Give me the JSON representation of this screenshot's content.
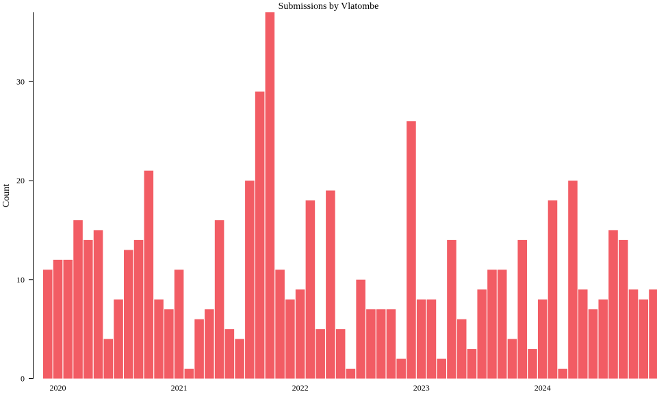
{
  "chart_data": {
    "type": "bar",
    "title": "Submissions by Vlatombe",
    "xlabel": "",
    "ylabel": "Count",
    "ylim": [
      0,
      37
    ],
    "yticks": [
      0,
      10,
      20,
      30
    ],
    "xticks": [
      "2020",
      "2021",
      "2022",
      "2023",
      "2024"
    ],
    "bar_color": "#f25c64",
    "grid": false,
    "categories": [
      "2019-12",
      "2020-01",
      "2020-02",
      "2020-03",
      "2020-04",
      "2020-05",
      "2020-06",
      "2020-07",
      "2020-08",
      "2020-09",
      "2020-10",
      "2020-11",
      "2020-12",
      "2021-01",
      "2021-02",
      "2021-03",
      "2021-04",
      "2021-05",
      "2021-06",
      "2021-07",
      "2021-08",
      "2021-09",
      "2021-10",
      "2021-11",
      "2021-12",
      "2022-01",
      "2022-02",
      "2022-03",
      "2022-04",
      "2022-05",
      "2022-06",
      "2022-07",
      "2022-08",
      "2022-09",
      "2022-10",
      "2022-11",
      "2022-12",
      "2023-01",
      "2023-02",
      "2023-03",
      "2023-04",
      "2023-05",
      "2023-06",
      "2023-07",
      "2023-08",
      "2023-09",
      "2023-10",
      "2023-11",
      "2023-12",
      "2024-01",
      "2024-02",
      "2024-03",
      "2024-04",
      "2024-05",
      "2024-06",
      "2024-07",
      "2024-08",
      "2024-09",
      "2024-10",
      "2024-11",
      "2024-12"
    ],
    "values": [
      11,
      12,
      12,
      16,
      14,
      15,
      4,
      8,
      13,
      14,
      21,
      8,
      7,
      11,
      1,
      6,
      7,
      16,
      5,
      4,
      20,
      29,
      37,
      11,
      8,
      9,
      18,
      5,
      19,
      5,
      1,
      10,
      7,
      7,
      7,
      2,
      26,
      8,
      8,
      2,
      14,
      6,
      3,
      9,
      11,
      11,
      4,
      14,
      3,
      8,
      18,
      1,
      20,
      9,
      7,
      8,
      15,
      14,
      9,
      8,
      9
    ]
  }
}
